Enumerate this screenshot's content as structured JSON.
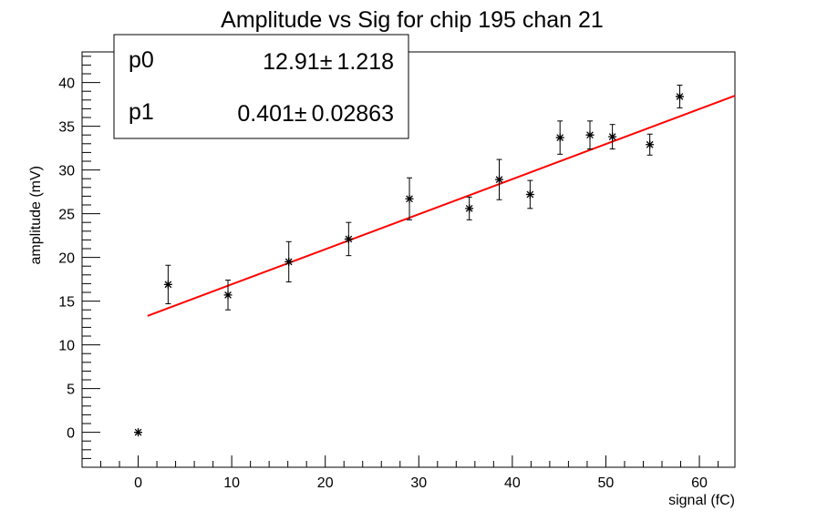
{
  "chart_data": {
    "type": "scatter",
    "title": "Amplitude vs Sig for chip 195 chan 21",
    "xlabel": "signal (fC)",
    "ylabel": "amplitude (mV)",
    "xlim": [
      -6,
      63.8
    ],
    "ylim": [
      -4,
      43.5
    ],
    "x_ticks": [
      0,
      10,
      20,
      30,
      40,
      50,
      60
    ],
    "y_ticks": [
      0,
      5,
      10,
      15,
      20,
      25,
      30,
      35,
      40
    ],
    "points": [
      {
        "x": 0,
        "y": 0,
        "err": 0
      },
      {
        "x": 3.2,
        "y": 16.9,
        "err": 2.2
      },
      {
        "x": 9.6,
        "y": 15.7,
        "err": 1.7
      },
      {
        "x": 16.1,
        "y": 19.5,
        "err": 2.3
      },
      {
        "x": 22.5,
        "y": 22.1,
        "err": 1.9
      },
      {
        "x": 29.0,
        "y": 26.7,
        "err": 2.4
      },
      {
        "x": 35.4,
        "y": 25.6,
        "err": 1.3
      },
      {
        "x": 38.6,
        "y": 28.9,
        "err": 2.3
      },
      {
        "x": 41.9,
        "y": 27.2,
        "err": 1.6
      },
      {
        "x": 45.1,
        "y": 33.7,
        "err": 1.9
      },
      {
        "x": 48.3,
        "y": 34.0,
        "err": 1.6
      },
      {
        "x": 50.7,
        "y": 33.8,
        "err": 1.4
      },
      {
        "x": 54.7,
        "y": 32.9,
        "err": 1.2
      },
      {
        "x": 57.9,
        "y": 38.4,
        "err": 1.3
      }
    ],
    "fit": {
      "x_range": [
        1.0,
        63.8
      ],
      "p0": 12.91,
      "p1": 0.401,
      "color": "#ff0000"
    },
    "stats": [
      {
        "name": "p0",
        "value": "12.91",
        "pm": "±",
        "error": "1.218"
      },
      {
        "name": "p1",
        "value": "0.401",
        "pm": "±",
        "error": "0.02863"
      }
    ],
    "grid": false
  }
}
